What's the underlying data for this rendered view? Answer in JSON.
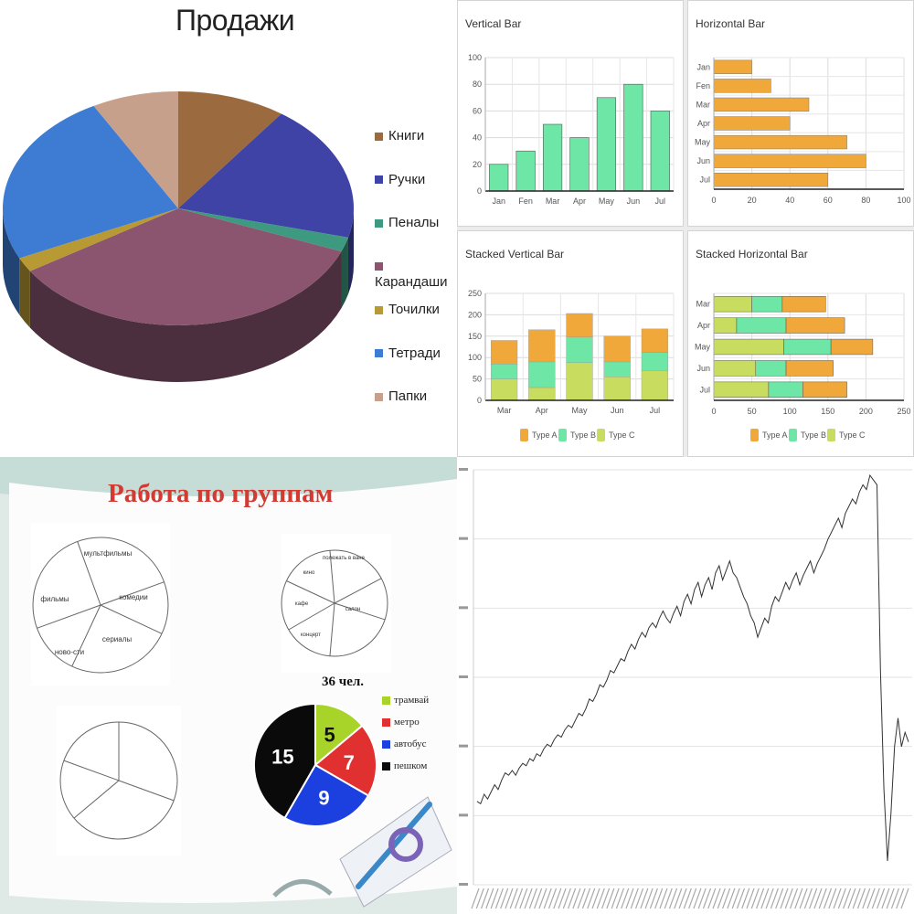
{
  "chart_data": [
    {
      "type": "pie",
      "title": "Продажи",
      "slices": [
        {
          "label": "Книги",
          "value": 10,
          "color": "#9b6a3f"
        },
        {
          "label": "Ручки",
          "value": 19,
          "color": "#3f43a6"
        },
        {
          "label": "Пеналы",
          "value": 2,
          "color": "#3d9a80"
        },
        {
          "label": "Карандаши",
          "value": 35,
          "color": "#8b5570"
        },
        {
          "label": "Точилки",
          "value": 2,
          "color": "#b89a35"
        },
        {
          "label": "Тетради",
          "value": 24,
          "color": "#3e7bd3"
        },
        {
          "label": "Папки",
          "value": 8,
          "color": "#c7a08c"
        }
      ],
      "legend_position": "right"
    },
    {
      "type": "bar",
      "title": "Vertical Bar",
      "categories": [
        "Jan",
        "Fen",
        "Mar",
        "Apr",
        "May",
        "Jun",
        "Jul"
      ],
      "values": [
        20,
        30,
        50,
        40,
        70,
        80,
        60
      ],
      "ylim": [
        0,
        100
      ],
      "yticks": [
        "0",
        "20",
        "40",
        "60",
        "80",
        "100"
      ],
      "color": "#6ee6a6",
      "grid": true
    },
    {
      "type": "bar",
      "orientation": "horizontal",
      "title": "Horizontal Bar",
      "categories": [
        "Jan",
        "Fen",
        "Mar",
        "Apr",
        "May",
        "Jun",
        "Jul"
      ],
      "values": [
        20,
        30,
        50,
        40,
        70,
        80,
        60
      ],
      "xlim": [
        0,
        100
      ],
      "xticks": [
        "0",
        "20",
        "40",
        "60",
        "80",
        "100"
      ],
      "color": "#f0a83a",
      "grid": true
    },
    {
      "type": "bar",
      "stacked": true,
      "title": "Stacked Vertical Bar",
      "categories": [
        "Mar",
        "Apr",
        "May",
        "Jun",
        "Jul"
      ],
      "series": [
        {
          "name": "Type C",
          "values": [
            50,
            30,
            88,
            55,
            70
          ],
          "color": "#c8dc60"
        },
        {
          "name": "Type B",
          "values": [
            35,
            60,
            60,
            35,
            42
          ],
          "color": "#6ee6a6"
        },
        {
          "name": "Type A",
          "values": [
            55,
            75,
            55,
            60,
            55
          ],
          "color": "#f0a83a"
        }
      ],
      "ylim": [
        0,
        250
      ],
      "yticks": [
        "0",
        "50",
        "100",
        "150",
        "200",
        "250"
      ],
      "legend_order": [
        "Type A",
        "Type B",
        "Type C"
      ],
      "legend_position": "bottom",
      "grid": true
    },
    {
      "type": "bar",
      "stacked": true,
      "orientation": "horizontal",
      "title": "Stacked Horizontal Bar",
      "categories": [
        "Mar",
        "Apr",
        "May",
        "Jun",
        "Jul"
      ],
      "series": [
        {
          "name": "Type C",
          "values": [
            50,
            30,
            92,
            55,
            72
          ],
          "color": "#c8dc60"
        },
        {
          "name": "Type B",
          "values": [
            40,
            65,
            62,
            40,
            45
          ],
          "color": "#6ee6a6"
        },
        {
          "name": "Type A",
          "values": [
            57,
            77,
            55,
            62,
            58
          ],
          "color": "#f0a83a"
        }
      ],
      "xlim": [
        0,
        250
      ],
      "xticks": [
        "0",
        "50",
        "100",
        "150",
        "200",
        "250"
      ],
      "legend_order": [
        "Type A",
        "Type B",
        "Type C"
      ],
      "legend_position": "bottom",
      "grid": true
    },
    {
      "type": "pie",
      "title": "Работа по группам",
      "subtitle": "36 чел.",
      "slices": [
        {
          "label": "трамвай",
          "value": 5,
          "color": "#a8d42a"
        },
        {
          "label": "метро",
          "value": 7,
          "color": "#e03030"
        },
        {
          "label": "автобус",
          "value": 9,
          "color": "#1c3fe0"
        },
        {
          "label": "пешком",
          "value": 15,
          "color": "#0a0a0a"
        }
      ],
      "legend_position": "right",
      "sketch_pies": [
        {
          "labels": [
            "мультфильмы",
            "комедии",
            "сериалы",
            "ново-сти",
            "фильмы"
          ]
        },
        {
          "labels": [
            "полежать в ване",
            "салон",
            "концерт",
            "кафе",
            "кино"
          ]
        },
        {
          "labels": []
        }
      ]
    },
    {
      "type": "line",
      "title": "",
      "y_ticks_visible": false,
      "x_ticks_visible": false,
      "y": [
        35,
        34,
        38,
        36,
        39,
        42,
        40,
        44,
        47,
        46,
        48,
        46,
        49,
        51,
        50,
        53,
        52,
        55,
        54,
        57,
        59,
        58,
        61,
        63,
        62,
        65,
        67,
        66,
        69,
        72,
        71,
        74,
        78,
        77,
        80,
        84,
        83,
        86,
        90,
        89,
        92,
        95,
        94,
        98,
        101,
        99,
        103,
        106,
        104,
        108,
        110,
        108,
        112,
        115,
        112,
        110,
        114,
        117,
        113,
        119,
        122,
        118,
        124,
        127,
        121,
        126,
        129,
        124,
        131,
        134,
        128,
        132,
        136,
        131,
        129,
        125,
        121,
        118,
        113,
        110,
        104,
        108,
        112,
        110,
        117,
        121,
        119,
        123,
        127,
        124,
        128,
        131,
        126,
        130,
        133,
        136,
        131,
        135,
        138,
        141,
        145,
        148,
        151,
        154,
        150,
        156,
        159,
        162,
        160,
        165,
        168,
        166,
        172,
        170,
        168,
        90,
        40,
        10,
        30,
        58,
        70,
        58,
        64,
        60
      ]
    }
  ]
}
